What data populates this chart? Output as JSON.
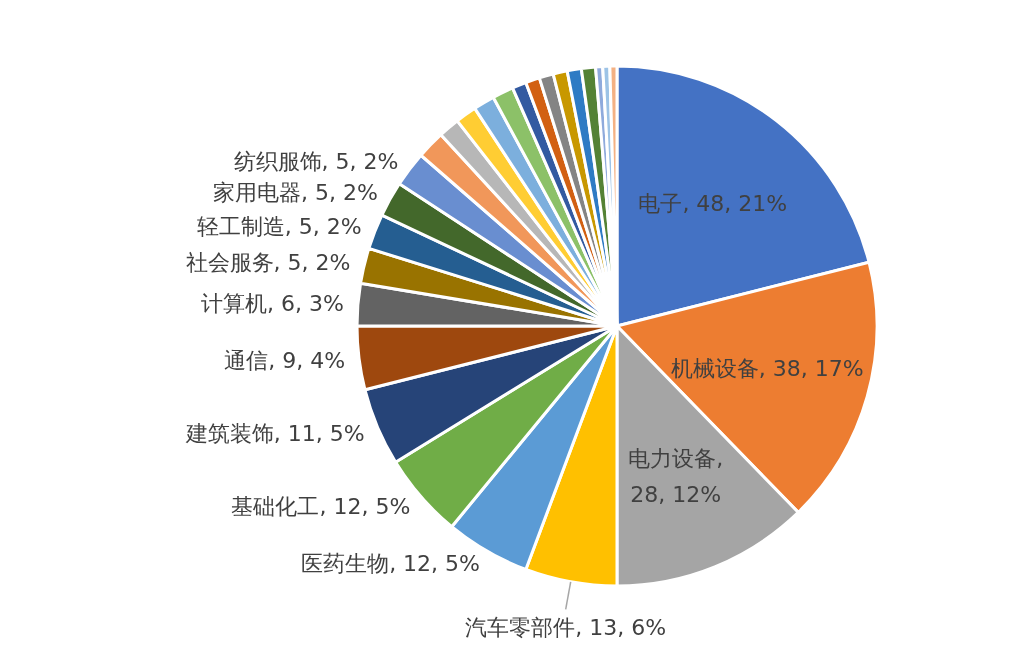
{
  "chart_data": {
    "type": "pie",
    "categories": [
      "电子",
      "机械设备",
      "电力设备",
      "汽车零部件",
      "医药生物",
      "基础化工",
      "建筑装饰",
      "通信",
      "计算机",
      "社会服务",
      "轻工制造",
      "家用电器",
      "纺织服饰",
      null,
      null,
      null,
      null,
      null,
      null,
      null,
      null,
      null,
      null,
      null,
      null,
      null,
      null
    ],
    "values": [
      48,
      38,
      28,
      13,
      12,
      12,
      11,
      9,
      6,
      5,
      5,
      5,
      5,
      4,
      3,
      3,
      3,
      3,
      2,
      2,
      2,
      2,
      2,
      2,
      1,
      1,
      1
    ],
    "value_labels": [
      ", 48, 21%",
      ", 38, 17%",
      ", 28, 12%",
      ", 13, 6%",
      ", 12, 5%",
      ", 12, 5%",
      ", 11, 5%",
      ", 9, 4%",
      ", 6, 3%",
      ", 5, 2%",
      ", 5, 2%",
      ", 5, 2%",
      ", 5, 2%",
      null,
      null,
      null,
      null,
      null,
      null,
      null,
      null,
      null,
      null,
      null,
      null,
      null,
      null
    ],
    "colors": [
      "#4472c4",
      "#ed7d31",
      "#a5a5a5",
      "#ffc000",
      "#5b9bd5",
      "#70ad47",
      "#264478",
      "#9e480e",
      "#636363",
      "#997300",
      "#255e91",
      "#43682b",
      "#698ed0",
      "#f1975a",
      "#b7b7b7",
      "#ffcd33",
      "#7cafdd",
      "#8cc168",
      "#335aa1",
      "#d26012",
      "#848484",
      "#c89800",
      "#2e7bc4",
      "#548235",
      "#8faadc",
      "#9dc3e6",
      "#f4b183"
    ],
    "legend": false
  }
}
